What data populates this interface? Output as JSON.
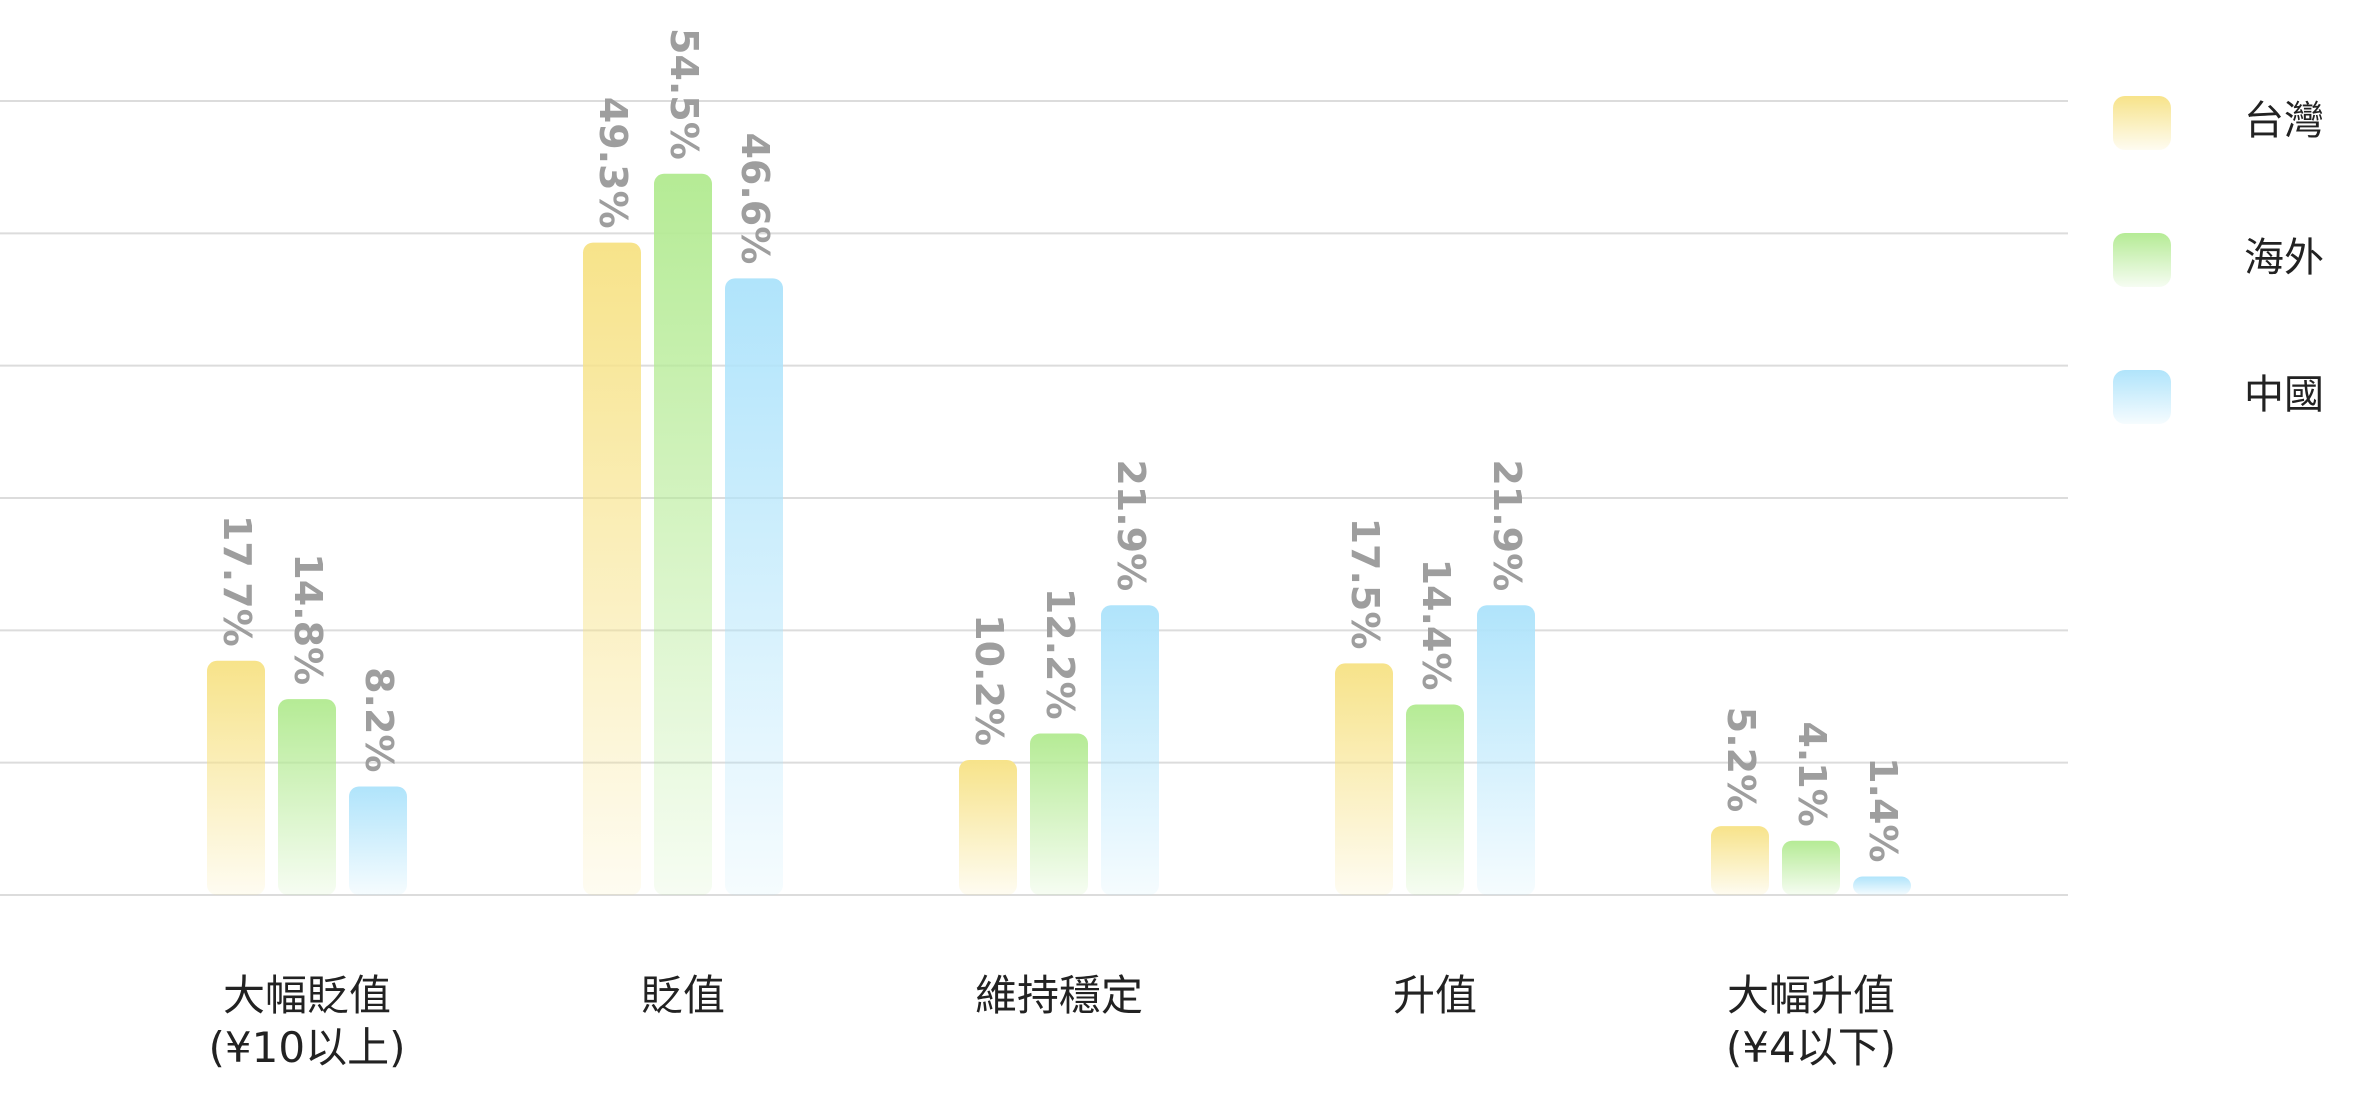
{
  "chart_data": {
    "type": "bar",
    "categories": [
      "大幅貶值\n(¥10以上)",
      "貶值",
      "維持穩定",
      "升值",
      "大幅升值\n(¥4以下)"
    ],
    "series": [
      {
        "name": "台灣",
        "color": "#f7e38a",
        "values": [
          17.7,
          49.3,
          10.2,
          17.5,
          5.2
        ],
        "value_labels": [
          "17.7%",
          "49.3%",
          "10.2%",
          "17.5%",
          "5.2%"
        ]
      },
      {
        "name": "海外",
        "color": "#b5eb95",
        "values": [
          14.8,
          54.5,
          12.2,
          14.4,
          4.1
        ],
        "value_labels": [
          "14.8%",
          "54.5%",
          "12.2%",
          "14.4%",
          "4.1%"
        ]
      },
      {
        "name": "中國",
        "color": "#b0e4fb",
        "values": [
          8.2,
          46.6,
          21.9,
          21.9,
          1.4
        ],
        "value_labels": [
          "8.2%",
          "46.6%",
          "21.9%",
          "21.9%",
          "1.4%"
        ]
      }
    ],
    "ylim": [
      0,
      60
    ],
    "yticks": [
      0,
      10,
      20,
      30,
      40,
      50,
      60
    ],
    "grid": true,
    "legend": "right"
  }
}
